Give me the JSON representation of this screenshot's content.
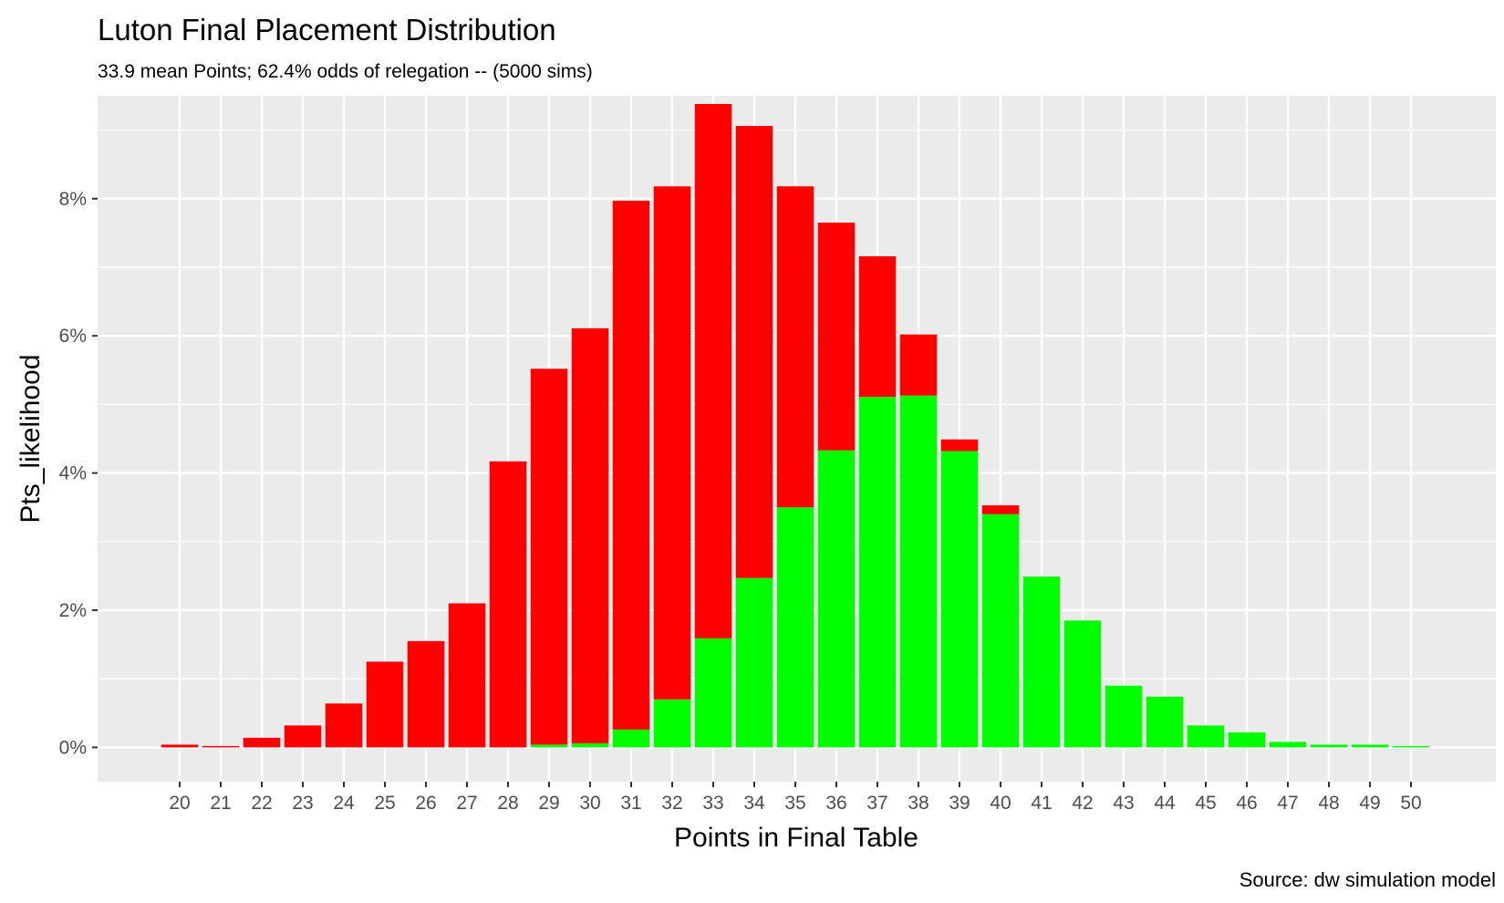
{
  "chart_data": {
    "type": "bar",
    "stacked": true,
    "title": "Luton Final Placement Distribution",
    "subtitle": "33.9 mean Points; 62.4% odds of relegation -- (5000 sims)",
    "caption": "Source:  dw simulation model",
    "xlabel": "Points in Final Table",
    "ylabel": "Pts_likelihood",
    "ylim": [
      -0.005,
      0.095
    ],
    "yticks": [
      0,
      0.02,
      0.04,
      0.06,
      0.08
    ],
    "ytick_labels": [
      "0%",
      "2%",
      "4%",
      "6%",
      "8%"
    ],
    "grid": true,
    "legend": "none",
    "categories": [
      "20",
      "21",
      "22",
      "23",
      "24",
      "25",
      "26",
      "27",
      "28",
      "29",
      "30",
      "31",
      "32",
      "33",
      "34",
      "35",
      "36",
      "37",
      "38",
      "39",
      "40",
      "41",
      "42",
      "43",
      "44",
      "45",
      "46",
      "47",
      "48",
      "49",
      "50"
    ],
    "series": [
      {
        "color": "#00ff00",
        "values": [
          0,
          0,
          0,
          0,
          0,
          0,
          0,
          0,
          0,
          0.0004,
          0.0006,
          0.0026,
          0.007,
          0.0159,
          0.0247,
          0.035,
          0.0433,
          0.0511,
          0.0513,
          0.0432,
          0.034,
          0.0249,
          0.0185,
          0.009,
          0.0074,
          0.0032,
          0.0022,
          0.0008,
          0.0004,
          0.0004,
          0.0002
        ]
      },
      {
        "color": "#ff0000",
        "values": [
          0.0004,
          0.0002,
          0.0014,
          0.0032,
          0.0064,
          0.0125,
          0.0155,
          0.021,
          0.0417,
          0.0548,
          0.0605,
          0.0771,
          0.0748,
          0.0779,
          0.0659,
          0.0468,
          0.0332,
          0.0205,
          0.0089,
          0.0017,
          0.0013,
          0,
          0,
          0,
          0,
          0,
          0,
          0,
          0,
          0,
          0
        ]
      }
    ]
  }
}
